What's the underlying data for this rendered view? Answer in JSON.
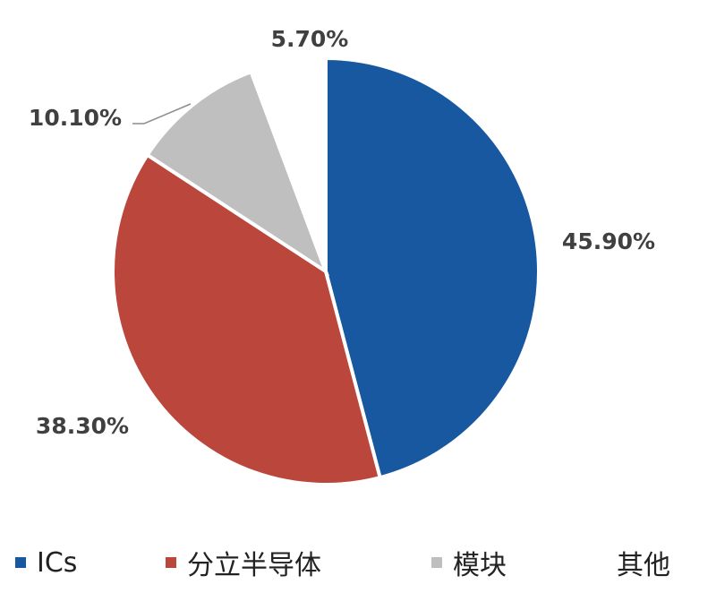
{
  "chart_data": {
    "type": "pie",
    "start_angle": "top, clockwise",
    "slices": [
      {
        "name": "ICs",
        "value": 45.9,
        "label": "45.90%",
        "color": "#1858a0"
      },
      {
        "name": "分立半导体",
        "value": 38.3,
        "label": "38.30%",
        "color": "#bb463b"
      },
      {
        "name": "模块",
        "value": 10.1,
        "label": "10.10%",
        "color": "#bfbfbf"
      },
      {
        "name": "其他",
        "value": 5.7,
        "label": "5.70%",
        "color": "#ffffff"
      }
    ],
    "legend_position": "bottom"
  }
}
